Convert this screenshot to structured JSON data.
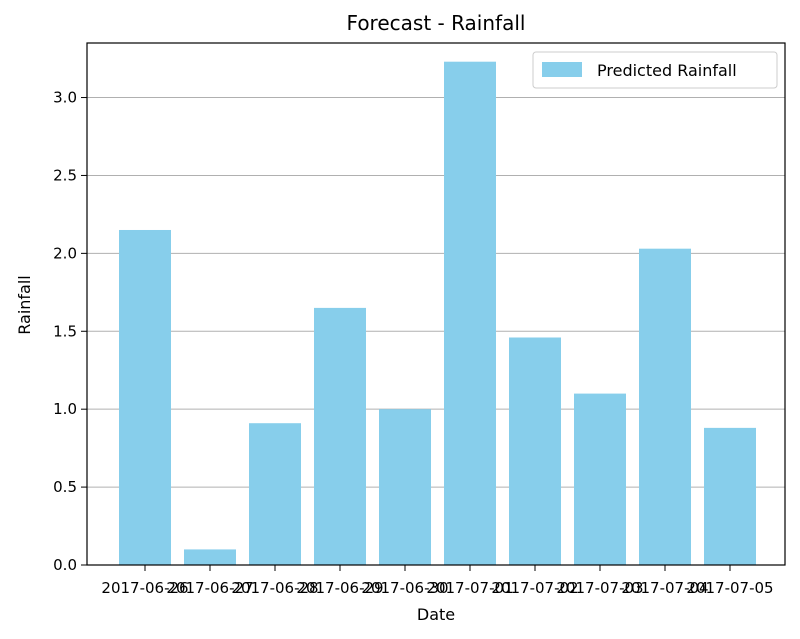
{
  "chart_data": {
    "type": "bar",
    "title": "Forecast - Rainfall",
    "xlabel": "Date",
    "ylabel": "Rainfall",
    "categories": [
      "2017-06-26",
      "2017-06-27",
      "2017-06-28",
      "2017-06-29",
      "2017-06-30",
      "2017-07-01",
      "2017-07-02",
      "2017-07-03",
      "2017-07-04",
      "2017-07-05"
    ],
    "series": [
      {
        "name": "Predicted Rainfall",
        "values": [
          2.15,
          0.1,
          0.91,
          1.65,
          1.0,
          3.23,
          1.46,
          1.1,
          2.03,
          0.88
        ]
      }
    ],
    "ylim": [
      0,
      3.35
    ],
    "yticks": [
      0.0,
      0.5,
      1.0,
      1.5,
      2.0,
      2.5,
      3.0
    ],
    "ytick_labels": [
      "0.0",
      "0.5",
      "1.0",
      "1.5",
      "2.0",
      "2.5",
      "3.0"
    ],
    "grid": "y",
    "legend": "top-right",
    "colors": {
      "bar": "#87ceeb",
      "grid": "#b0b0b0",
      "axis": "#000000"
    }
  }
}
